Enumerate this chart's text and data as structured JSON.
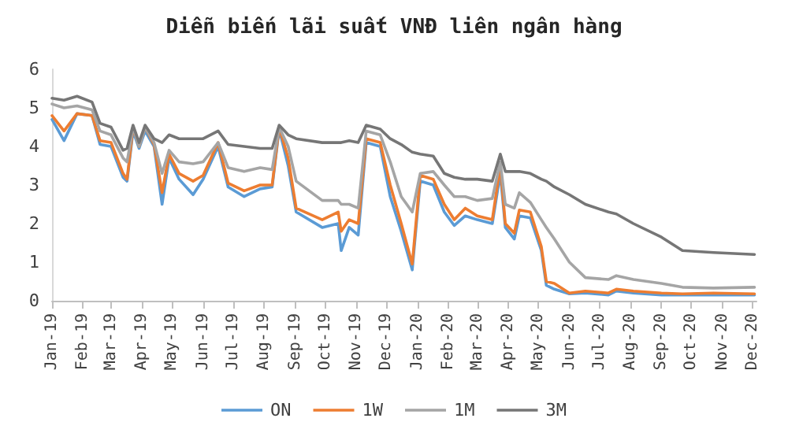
{
  "chart_data": {
    "type": "line",
    "title": "Diễn biến lãi suất VNĐ liên ngân hàng",
    "x": [
      "2019-01-01",
      "2019-01-13",
      "2019-01-26",
      "2019-02-10",
      "2019-02-18",
      "2019-03-01",
      "2019-03-13",
      "2019-03-17",
      "2019-03-23",
      "2019-03-29",
      "2019-04-04",
      "2019-04-13",
      "2019-04-21",
      "2019-04-28",
      "2019-05-08",
      "2019-05-22",
      "2019-06-01",
      "2019-06-16",
      "2019-06-26",
      "2019-07-12",
      "2019-07-28",
      "2019-08-09",
      "2019-08-16",
      "2019-08-25",
      "2019-09-02",
      "2019-09-28",
      "2019-10-14",
      "2019-10-17",
      "2019-10-25",
      "2019-11-03",
      "2019-11-11",
      "2019-11-25",
      "2019-12-05",
      "2019-12-16",
      "2019-12-27",
      "2020-01-04",
      "2020-01-17",
      "2020-01-28",
      "2020-02-07",
      "2020-02-18",
      "2020-03-01",
      "2020-03-16",
      "2020-03-24",
      "2020-03-29",
      "2020-04-07",
      "2020-04-12",
      "2020-04-23",
      "2020-05-04",
      "2020-05-09",
      "2020-05-17",
      "2020-06-01",
      "2020-06-17",
      "2020-07-10",
      "2020-07-18",
      "2020-08-04",
      "2020-09-01",
      "2020-09-22",
      "2020-10-23",
      "2020-12-03"
    ],
    "series": [
      {
        "name": "ON",
        "color": "#5b9bd5",
        "values": [
          4.7,
          4.15,
          4.85,
          4.8,
          4.05,
          4.0,
          3.2,
          3.1,
          4.4,
          3.95,
          4.4,
          4.0,
          2.5,
          3.7,
          3.15,
          2.75,
          3.15,
          4.0,
          2.95,
          2.7,
          2.9,
          2.95,
          4.45,
          3.5,
          2.3,
          1.9,
          2.0,
          1.3,
          1.9,
          1.7,
          4.1,
          4.0,
          2.7,
          1.8,
          0.8,
          3.1,
          3.0,
          2.3,
          1.95,
          2.2,
          2.1,
          2.0,
          3.3,
          1.9,
          1.6,
          2.2,
          2.15,
          1.3,
          0.4,
          0.3,
          0.18,
          0.2,
          0.15,
          0.25,
          0.2,
          0.15,
          0.15,
          0.15,
          0.15
        ]
      },
      {
        "name": "1W",
        "color": "#ed7d31",
        "values": [
          4.8,
          4.4,
          4.85,
          4.8,
          4.15,
          4.1,
          3.3,
          3.15,
          4.5,
          4.0,
          4.5,
          4.05,
          2.8,
          3.8,
          3.3,
          3.1,
          3.25,
          4.1,
          3.05,
          2.85,
          3.0,
          3.0,
          4.5,
          3.7,
          2.4,
          2.1,
          2.3,
          1.8,
          2.1,
          2.0,
          4.2,
          4.1,
          3.0,
          2.0,
          0.95,
          3.25,
          3.15,
          2.5,
          2.1,
          2.4,
          2.2,
          2.1,
          3.5,
          2.0,
          1.75,
          2.35,
          2.3,
          1.4,
          0.5,
          0.45,
          0.2,
          0.25,
          0.2,
          0.3,
          0.25,
          0.2,
          0.18,
          0.2,
          0.18
        ]
      },
      {
        "name": "1M",
        "color": "#a5a5a5",
        "values": [
          5.1,
          5.0,
          5.05,
          4.95,
          4.4,
          4.3,
          3.7,
          3.6,
          4.5,
          4.0,
          4.5,
          4.1,
          3.3,
          3.9,
          3.6,
          3.55,
          3.6,
          4.1,
          3.45,
          3.35,
          3.45,
          3.4,
          4.5,
          4.0,
          3.1,
          2.6,
          2.6,
          2.5,
          2.5,
          2.4,
          4.4,
          4.3,
          3.6,
          2.7,
          2.3,
          3.3,
          3.35,
          3.0,
          2.7,
          2.7,
          2.6,
          2.65,
          3.6,
          2.5,
          2.4,
          2.8,
          2.55,
          2.1,
          1.9,
          1.6,
          1.0,
          0.6,
          0.55,
          0.65,
          0.55,
          0.45,
          0.35,
          0.33,
          0.35
        ]
      },
      {
        "name": "3M",
        "color": "#767676",
        "values": [
          5.25,
          5.2,
          5.3,
          5.15,
          4.6,
          4.5,
          3.9,
          3.95,
          4.55,
          4.1,
          4.55,
          4.2,
          4.1,
          4.3,
          4.2,
          4.2,
          4.2,
          4.4,
          4.05,
          4.0,
          3.95,
          3.95,
          4.55,
          4.3,
          4.2,
          4.1,
          4.1,
          4.1,
          4.15,
          4.1,
          4.55,
          4.45,
          4.2,
          4.05,
          3.85,
          3.8,
          3.75,
          3.3,
          3.2,
          3.15,
          3.15,
          3.1,
          3.8,
          3.35,
          3.35,
          3.35,
          3.3,
          3.15,
          3.1,
          2.95,
          2.75,
          2.5,
          2.3,
          2.25,
          2.0,
          1.65,
          1.3,
          1.25,
          1.2
        ]
      }
    ],
    "xlim": [
      "2019-01-01",
      "2020-12-05"
    ],
    "xticks": [
      {
        "value": "2019-01-01",
        "label": "Jan-19"
      },
      {
        "value": "2019-02-01",
        "label": "Feb-19"
      },
      {
        "value": "2019-03-01",
        "label": "Mar-19"
      },
      {
        "value": "2019-04-01",
        "label": "Apr-19"
      },
      {
        "value": "2019-05-01",
        "label": "May-19"
      },
      {
        "value": "2019-06-01",
        "label": "Jun-19"
      },
      {
        "value": "2019-07-01",
        "label": "Jul-19"
      },
      {
        "value": "2019-08-01",
        "label": "Aug-19"
      },
      {
        "value": "2019-09-01",
        "label": "Sep-19"
      },
      {
        "value": "2019-10-01",
        "label": "Oct-19"
      },
      {
        "value": "2019-11-01",
        "label": "Nov-19"
      },
      {
        "value": "2019-12-01",
        "label": "Dec-19"
      },
      {
        "value": "2020-01-01",
        "label": "Jan-20"
      },
      {
        "value": "2020-02-01",
        "label": "Feb-20"
      },
      {
        "value": "2020-03-01",
        "label": "Mar-20"
      },
      {
        "value": "2020-04-01",
        "label": "Apr-20"
      },
      {
        "value": "2020-05-01",
        "label": "May-20"
      },
      {
        "value": "2020-06-01",
        "label": "Jun-20"
      },
      {
        "value": "2020-07-01",
        "label": "Jul-20"
      },
      {
        "value": "2020-08-01",
        "label": "Aug-20"
      },
      {
        "value": "2020-09-01",
        "label": "Sep-20"
      },
      {
        "value": "2020-10-01",
        "label": "Oct-20"
      },
      {
        "value": "2020-11-01",
        "label": "Nov-20"
      },
      {
        "value": "2020-12-01",
        "label": "Dec-20"
      }
    ],
    "ylim": [
      0,
      6
    ],
    "yticks": [
      0,
      1,
      2,
      3,
      4,
      5,
      6
    ],
    "grid": false,
    "legend": "bottom",
    "marker": "none",
    "line_style": "solid"
  }
}
